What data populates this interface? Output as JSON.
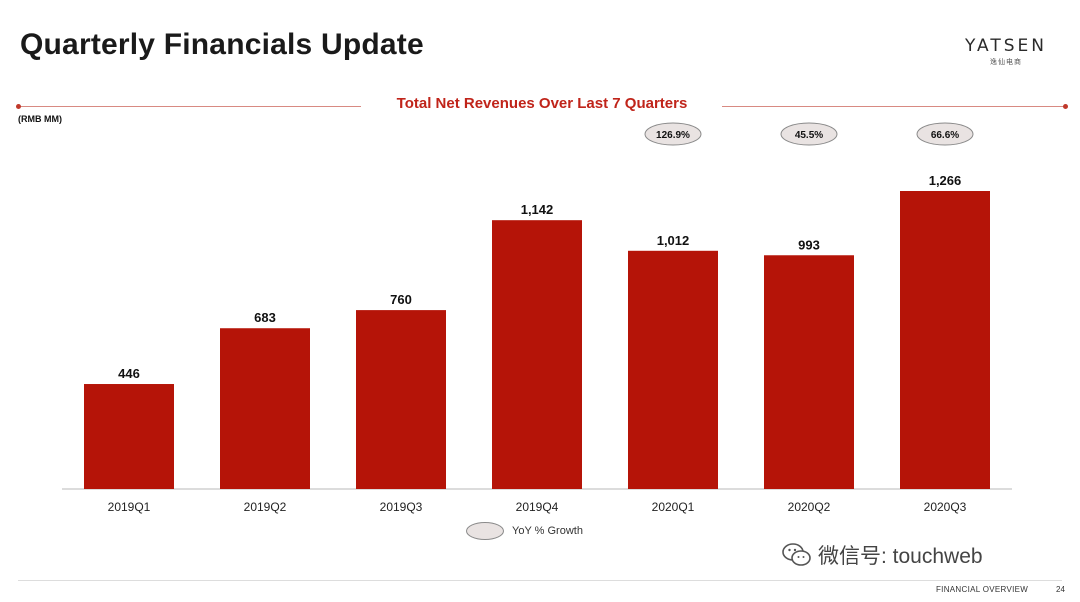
{
  "page": {
    "title": "Quarterly Financials Update",
    "logo_text": "YATSEN",
    "logo_sub": "逸仙电商",
    "footer_section": "FINANCIAL OVERVIEW",
    "page_number": "24",
    "watermark": "微信号: touchweb"
  },
  "colors": {
    "bar": "#b51408",
    "accent": "#c0241a",
    "pill_fill": "#e9e3e2",
    "pill_stroke": "#8a8a8a"
  },
  "chart_data": {
    "type": "bar",
    "title": "Total Net Revenues Over Last 7 Quarters",
    "unit_label": "(RMB MM)",
    "categories": [
      "2019Q1",
      "2019Q2",
      "2019Q3",
      "2019Q4",
      "2020Q1",
      "2020Q2",
      "2020Q3"
    ],
    "values": [
      446,
      683,
      760,
      1142,
      1012,
      993,
      1266
    ],
    "value_labels": [
      "446",
      "683",
      "760",
      "1,142",
      "1,012",
      "993",
      "1,266"
    ],
    "yoy_growth": [
      "",
      "",
      "",
      "",
      "126.9%",
      "45.5%",
      "66.6%"
    ],
    "legend": "YoY % Growth",
    "ylim": [
      0,
      1266
    ],
    "grid": false
  }
}
